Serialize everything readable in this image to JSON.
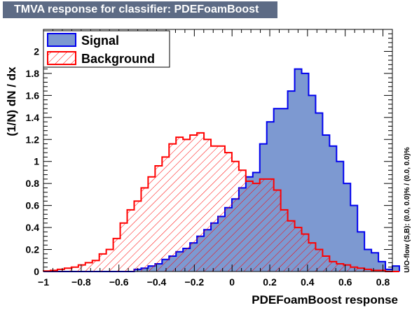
{
  "chart_data": {
    "type": "histogram",
    "title": "TMVA response for classifier: PDEFoamBoost",
    "xlabel": "PDEFoamBoost response",
    "ylabel": "(1/N) dN / dx",
    "side_label": "U/O-flow (S,B): (0.0, 0.0)% / (0.0, 0.0)%",
    "xlim": [
      -1.0,
      0.85
    ],
    "ylim": [
      0,
      2.2
    ],
    "x_ticks": [
      -1,
      -0.8,
      -0.6,
      -0.4,
      -0.2,
      0,
      0.2,
      0.4,
      0.6,
      0.8
    ],
    "x_tick_labels": [
      "−1",
      "−0.8",
      "−0.6",
      "−0.4",
      "−0.2",
      "0",
      "0.2",
      "0.4",
      "0.6",
      "0.8"
    ],
    "y_ticks": [
      0,
      0.2,
      0.4,
      0.6,
      0.8,
      1,
      1.2,
      1.4,
      1.6,
      1.8,
      2
    ],
    "y_tick_labels": [
      "0",
      "0.2",
      "0.4",
      "0.6",
      "0.8",
      "1",
      "1.2",
      "1.4",
      "1.6",
      "1.8",
      "2"
    ],
    "bin_edges_start": -1.0,
    "bin_width": 0.037,
    "legend_position": "top-left",
    "series": [
      {
        "name": "Signal",
        "style": "filled",
        "fill_color": "#7d99d1",
        "line_color": "#0000ee",
        "values": [
          0,
          0,
          0,
          0,
          0,
          0,
          0,
          0,
          0,
          0,
          0,
          0,
          0,
          0.02,
          0.03,
          0.05,
          0.07,
          0.11,
          0.14,
          0.18,
          0.21,
          0.26,
          0.32,
          0.38,
          0.44,
          0.5,
          0.58,
          0.66,
          0.76,
          0.86,
          0.9,
          1.16,
          1.36,
          1.48,
          1.48,
          1.64,
          1.84,
          1.8,
          1.6,
          1.44,
          1.24,
          1.14,
          1.0,
          0.8,
          0.6,
          0.36,
          0.2,
          0.17,
          0.09,
          0.02,
          0.05
        ]
      },
      {
        "name": "Background",
        "style": "hatched",
        "fill_color": "#ff0000",
        "line_color": "#ff0000",
        "values": [
          0.005,
          0.01,
          0.02,
          0.03,
          0.04,
          0.06,
          0.08,
          0.1,
          0.16,
          0.2,
          0.3,
          0.44,
          0.56,
          0.64,
          0.76,
          0.86,
          0.96,
          1.04,
          1.16,
          1.22,
          1.2,
          1.24,
          1.26,
          1.2,
          1.14,
          1.14,
          1.08,
          1.0,
          0.92,
          0.82,
          0.8,
          0.84,
          0.84,
          0.74,
          0.56,
          0.46,
          0.4,
          0.34,
          0.26,
          0.2,
          0.14,
          0.09,
          0.07,
          0.06,
          0.04,
          0.03,
          0.02,
          0.01,
          0.01,
          0.0,
          0.0
        ]
      }
    ]
  }
}
